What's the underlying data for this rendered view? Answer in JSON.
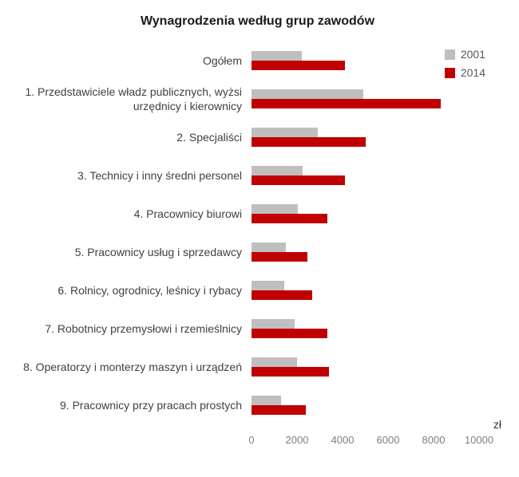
{
  "chart_data": {
    "type": "bar",
    "orientation": "horizontal",
    "title": "Wynagrodzenia według grup zawodów",
    "unit_label": "zł",
    "categories": [
      "Ogółem",
      "1. Przedstawiciele władz publicznych, wyżsi urzędnicy i kierownicy",
      "2. Specjaliści",
      "3. Technicy i inny średni personel",
      "4. Pracownicy biurowi",
      "5. Pracownicy usług i sprzedawcy",
      "6. Rolnicy, ogrodnicy, leśnicy i rybacy",
      "7. Robotnicy przemysłowi i rzemieślnicy",
      "8. Operatorzy i monterzy maszyn i urządzeń",
      "9. Pracownicy przy pracach prostych"
    ],
    "series": [
      {
        "name": "2001",
        "color": "#bfbfbf",
        "values": [
          2200,
          4900,
          2900,
          2250,
          2050,
          1500,
          1450,
          1900,
          2000,
          1300
        ]
      },
      {
        "name": "2014",
        "color": "#c00000",
        "values": [
          4100,
          8300,
          5000,
          4100,
          3350,
          2450,
          2650,
          3350,
          3400,
          2400
        ]
      }
    ],
    "xlim": [
      0,
      10000
    ],
    "xticks": [
      0,
      2000,
      4000,
      6000,
      8000,
      10000
    ],
    "legend_position": "top-right",
    "grid": false
  }
}
